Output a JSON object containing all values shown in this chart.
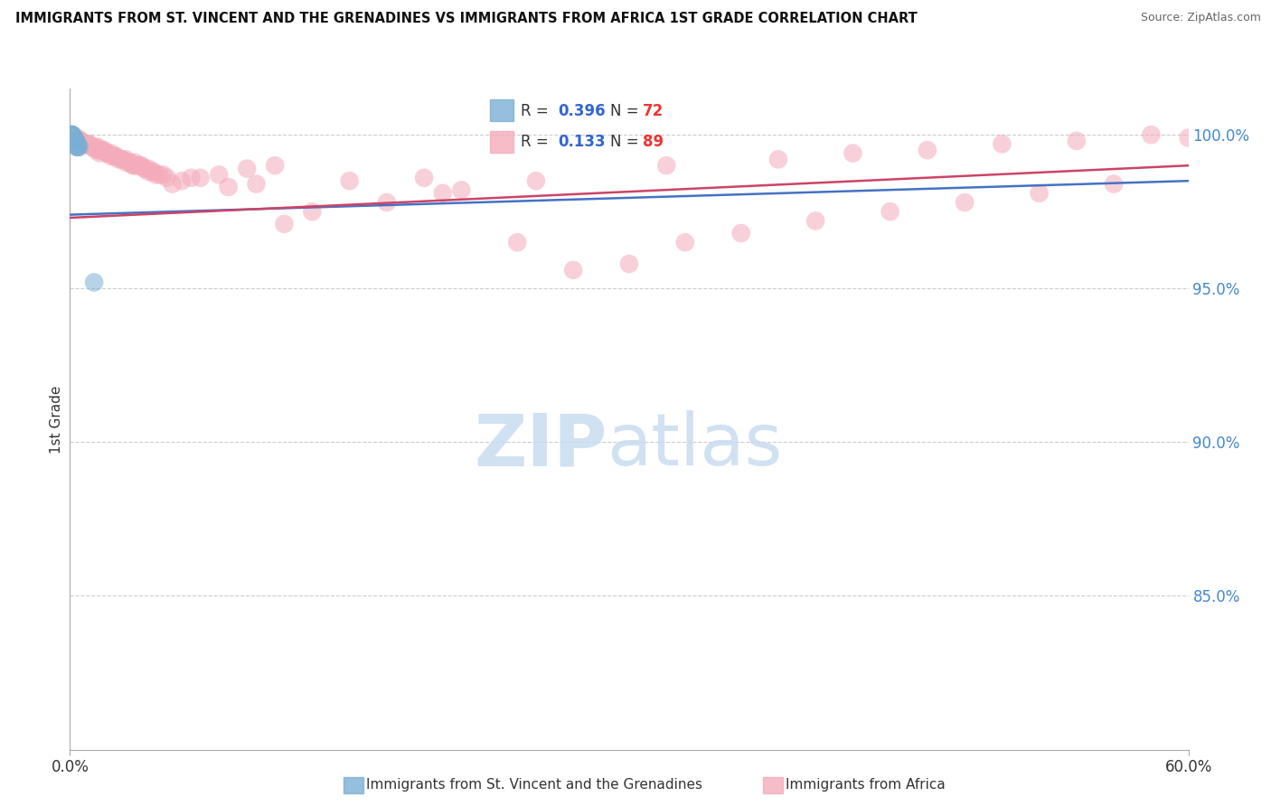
{
  "title": "IMMIGRANTS FROM ST. VINCENT AND THE GRENADINES VS IMMIGRANTS FROM AFRICA 1ST GRADE CORRELATION CHART",
  "source": "Source: ZipAtlas.com",
  "ylabel": "1st Grade",
  "xlim": [
    0.0,
    0.6
  ],
  "ylim": [
    0.8,
    1.015
  ],
  "yticks": [
    0.85,
    0.9,
    0.95,
    1.0
  ],
  "ytick_labels": [
    "85.0%",
    "90.0%",
    "95.0%",
    "100.0%"
  ],
  "xtick_labels": [
    "0.0%",
    "60.0%"
  ],
  "legend_R1": "0.396",
  "legend_N1": "72",
  "legend_R2": "0.133",
  "legend_N2": "89",
  "blue_color": "#7BAFD4",
  "pink_color": "#F4ABBA",
  "blue_line_color": "#4472C4",
  "pink_line_color": "#CC4466",
  "blue_x": [
    0.001,
    0.002,
    0.003,
    0.001,
    0.002,
    0.003,
    0.004,
    0.002,
    0.003,
    0.001,
    0.004,
    0.005,
    0.002,
    0.003,
    0.001,
    0.002,
    0.004,
    0.003,
    0.002,
    0.003,
    0.001,
    0.003,
    0.002,
    0.003,
    0.001,
    0.003,
    0.002,
    0.001,
    0.003,
    0.002,
    0.003,
    0.002,
    0.001,
    0.003,
    0.002,
    0.003,
    0.001,
    0.003,
    0.002,
    0.003,
    0.004,
    0.002,
    0.001,
    0.003,
    0.002,
    0.001,
    0.003,
    0.002,
    0.003,
    0.002,
    0.001,
    0.003,
    0.004,
    0.002,
    0.003,
    0.001,
    0.002,
    0.003,
    0.003,
    0.002,
    0.001,
    0.003,
    0.002,
    0.013,
    0.003,
    0.002,
    0.003,
    0.001,
    0.002,
    0.003,
    0.001,
    0.003
  ],
  "blue_y": [
    1.0,
    0.999,
    0.998,
    0.999,
    0.998,
    0.997,
    0.996,
    0.999,
    0.998,
    0.999,
    0.997,
    0.996,
    0.999,
    0.998,
    0.999,
    0.998,
    0.997,
    0.998,
    0.999,
    0.997,
    1.0,
    0.998,
    0.999,
    0.997,
    0.999,
    0.998,
    0.999,
    1.0,
    0.998,
    0.998,
    0.997,
    0.999,
    1.0,
    0.998,
    0.999,
    0.997,
    0.999,
    0.998,
    0.999,
    0.997,
    0.996,
    0.999,
    1.0,
    0.998,
    0.998,
    0.999,
    0.997,
    0.999,
    0.998,
    0.999,
    1.0,
    0.998,
    0.996,
    0.999,
    0.998,
    1.0,
    0.999,
    0.997,
    0.998,
    0.999,
    1.0,
    0.997,
    0.998,
    0.952,
    0.998,
    0.999,
    0.997,
    0.999,
    0.998,
    0.998,
    0.999,
    0.998
  ],
  "pink_x": [
    0.002,
    0.01,
    0.018,
    0.025,
    0.03,
    0.005,
    0.012,
    0.02,
    0.035,
    0.022,
    0.015,
    0.028,
    0.008,
    0.016,
    0.032,
    0.01,
    0.038,
    0.004,
    0.04,
    0.014,
    0.045,
    0.003,
    0.024,
    0.034,
    0.012,
    0.042,
    0.02,
    0.03,
    0.006,
    0.036,
    0.016,
    0.048,
    0.008,
    0.026,
    0.036,
    0.018,
    0.044,
    0.022,
    0.032,
    0.014,
    0.04,
    0.004,
    0.05,
    0.01,
    0.038,
    0.02,
    0.046,
    0.028,
    0.006,
    0.042,
    0.024,
    0.034,
    0.052,
    0.016,
    0.06,
    0.07,
    0.085,
    0.1,
    0.115,
    0.13,
    0.15,
    0.17,
    0.19,
    0.21,
    0.24,
    0.27,
    0.3,
    0.33,
    0.36,
    0.4,
    0.44,
    0.48,
    0.52,
    0.56,
    0.055,
    0.065,
    0.08,
    0.095,
    0.11,
    0.2,
    0.25,
    0.32,
    0.38,
    0.42,
    0.46,
    0.5,
    0.54,
    0.58,
    0.6
  ],
  "pink_y": [
    0.999,
    0.997,
    0.995,
    0.993,
    0.992,
    0.998,
    0.996,
    0.994,
    0.991,
    0.993,
    0.996,
    0.992,
    0.997,
    0.995,
    0.991,
    0.997,
    0.99,
    0.998,
    0.989,
    0.995,
    0.988,
    0.999,
    0.993,
    0.99,
    0.996,
    0.988,
    0.994,
    0.991,
    0.998,
    0.99,
    0.995,
    0.987,
    0.997,
    0.992,
    0.99,
    0.995,
    0.988,
    0.994,
    0.991,
    0.996,
    0.989,
    0.999,
    0.987,
    0.997,
    0.99,
    0.994,
    0.987,
    0.992,
    0.998,
    0.989,
    0.993,
    0.99,
    0.986,
    0.994,
    0.985,
    0.986,
    0.983,
    0.984,
    0.971,
    0.975,
    0.985,
    0.978,
    0.986,
    0.982,
    0.965,
    0.956,
    0.958,
    0.965,
    0.968,
    0.972,
    0.975,
    0.978,
    0.981,
    0.984,
    0.984,
    0.986,
    0.987,
    0.989,
    0.99,
    0.981,
    0.985,
    0.99,
    0.992,
    0.994,
    0.995,
    0.997,
    0.998,
    1.0,
    0.999
  ],
  "blue_trendline_x": [
    0.0,
    0.6
  ],
  "blue_trendline_y": [
    0.974,
    0.985
  ],
  "pink_trendline_x": [
    0.0,
    0.6
  ],
  "pink_trendline_y": [
    0.973,
    0.99
  ]
}
